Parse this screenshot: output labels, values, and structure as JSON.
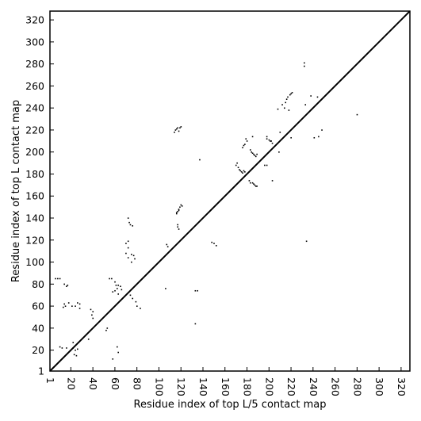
{
  "chart_data": {
    "type": "scatter",
    "xlabel": "Residue index of top L/5 contact map",
    "ylabel": "Residue index of top L contact map",
    "xlim": [
      1,
      328
    ],
    "ylim": [
      1,
      328
    ],
    "x_ticks": [
      1,
      20,
      40,
      60,
      80,
      100,
      120,
      140,
      160,
      180,
      200,
      220,
      240,
      260,
      280,
      300,
      320
    ],
    "y_ticks": [
      1,
      20,
      40,
      60,
      80,
      100,
      120,
      140,
      160,
      180,
      200,
      220,
      240,
      260,
      280,
      300,
      320
    ],
    "grid": false,
    "diagonal_line": true,
    "series": [
      {
        "points": [
          [
            6,
            85
          ],
          [
            8,
            85
          ],
          [
            10,
            85
          ],
          [
            14,
            80
          ],
          [
            16,
            78
          ],
          [
            17,
            79
          ],
          [
            14,
            62
          ],
          [
            15,
            60
          ],
          [
            13,
            59
          ],
          [
            18,
            63
          ],
          [
            21,
            60
          ],
          [
            24,
            60
          ],
          [
            26,
            63
          ],
          [
            28,
            62
          ],
          [
            28,
            58
          ],
          [
            22,
            27
          ],
          [
            22,
            22
          ],
          [
            16,
            22
          ],
          [
            12,
            22
          ],
          [
            10,
            23
          ],
          [
            23,
            16
          ],
          [
            25,
            15
          ],
          [
            24,
            20
          ],
          [
            26,
            21
          ],
          [
            38,
            57
          ],
          [
            40,
            55
          ],
          [
            39,
            52
          ],
          [
            40,
            49
          ],
          [
            36,
            30
          ],
          [
            53,
            40
          ],
          [
            52,
            38
          ],
          [
            55,
            85
          ],
          [
            57,
            85
          ],
          [
            60,
            82
          ],
          [
            61,
            79
          ],
          [
            63,
            79
          ],
          [
            62,
            76
          ],
          [
            60,
            74
          ],
          [
            65,
            78
          ],
          [
            66,
            75
          ],
          [
            63,
            71
          ],
          [
            58,
            73
          ],
          [
            62,
            23
          ],
          [
            63,
            18
          ],
          [
            58,
            12
          ],
          [
            70,
            117
          ],
          [
            72,
            119
          ],
          [
            72,
            140
          ],
          [
            73,
            136
          ],
          [
            74,
            134
          ],
          [
            76,
            133
          ],
          [
            72,
            113
          ],
          [
            75,
            107
          ],
          [
            77,
            106
          ],
          [
            78,
            103
          ],
          [
            75,
            100
          ],
          [
            72,
            104
          ],
          [
            70,
            108
          ],
          [
            74,
            70
          ],
          [
            76,
            67
          ],
          [
            79,
            64
          ],
          [
            80,
            60
          ],
          [
            83,
            58
          ],
          [
            117,
            146
          ],
          [
            118,
            148
          ],
          [
            119,
            150
          ],
          [
            120,
            152
          ],
          [
            116,
            145
          ],
          [
            116,
            144
          ],
          [
            118,
            147
          ],
          [
            121,
            151
          ],
          [
            115,
            220
          ],
          [
            116,
            221
          ],
          [
            117,
            222
          ],
          [
            118,
            219
          ],
          [
            119,
            222
          ],
          [
            120,
            223
          ],
          [
            114,
            218
          ],
          [
            117,
            134
          ],
          [
            118,
            130
          ],
          [
            117,
            132
          ],
          [
            108,
            114
          ],
          [
            107,
            116
          ],
          [
            106,
            76
          ],
          [
            137,
            193
          ],
          [
            133,
            74
          ],
          [
            135,
            74
          ],
          [
            133,
            44
          ],
          [
            150,
            117
          ],
          [
            152,
            115
          ],
          [
            148,
            118
          ],
          [
            170,
            188
          ],
          [
            172,
            186
          ],
          [
            173,
            184
          ],
          [
            174,
            183
          ],
          [
            175,
            182
          ],
          [
            176,
            181
          ],
          [
            177,
            183
          ],
          [
            178,
            182
          ],
          [
            171,
            190
          ],
          [
            176,
            204
          ],
          [
            177,
            206
          ],
          [
            178,
            207
          ],
          [
            180,
            210
          ],
          [
            179,
            212
          ],
          [
            185,
            214
          ],
          [
            183,
            202
          ],
          [
            184,
            200
          ],
          [
            185,
            199
          ],
          [
            186,
            198
          ],
          [
            187,
            197
          ],
          [
            188,
            196
          ],
          [
            189,
            198
          ],
          [
            182,
            174
          ],
          [
            183,
            172
          ],
          [
            185,
            172
          ],
          [
            186,
            171
          ],
          [
            187,
            170
          ],
          [
            188,
            169
          ],
          [
            189,
            169
          ],
          [
            196,
            188
          ],
          [
            198,
            188
          ],
          [
            198,
            212
          ],
          [
            200,
            211
          ],
          [
            201,
            210
          ],
          [
            202,
            210
          ],
          [
            203,
            208
          ],
          [
            198,
            214
          ],
          [
            203,
            174
          ],
          [
            209,
            200
          ],
          [
            210,
            218
          ],
          [
            212,
            243
          ],
          [
            215,
            245
          ],
          [
            216,
            248
          ],
          [
            217,
            250
          ],
          [
            219,
            252
          ],
          [
            220,
            253
          ],
          [
            221,
            254
          ],
          [
            218,
            238
          ],
          [
            214,
            240
          ],
          [
            208,
            239
          ],
          [
            220,
            213
          ],
          [
            232,
            278
          ],
          [
            232,
            281
          ],
          [
            233,
            243
          ],
          [
            234,
            119
          ],
          [
            238,
            251
          ],
          [
            241,
            213
          ],
          [
            245,
            214
          ],
          [
            244,
            250
          ],
          [
            248,
            220
          ],
          [
            280,
            234
          ]
        ]
      }
    ]
  }
}
